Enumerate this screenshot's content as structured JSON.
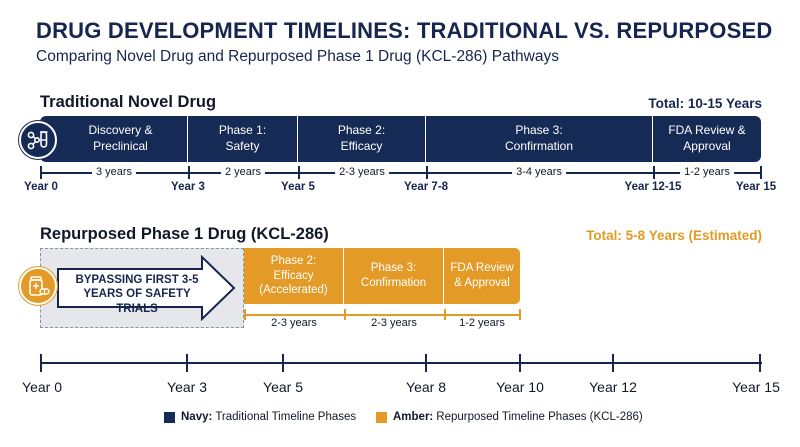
{
  "header": {
    "title": "DRUG DEVELOPMENT TIMELINES: TRADITIONAL VS. REPURPOSED",
    "subtitle": "Comparing Novel Drug and Repurposed Phase 1 Drug (KCL-286) Pathways"
  },
  "colors": {
    "navy": "#162a56",
    "amber": "#e39a26",
    "gray": "#e6e7ea"
  },
  "traditional": {
    "title": "Traditional Novel Drug",
    "total": "Total: 10-15 Years",
    "icon": "molecule-vial-icon",
    "phases": [
      {
        "label": "Discovery &\nPreclinical",
        "duration": "3 years"
      },
      {
        "label": "Phase 1:\nSafety",
        "duration": "2 years"
      },
      {
        "label": "Phase 2:\nEfficacy",
        "duration": "2-3 years"
      },
      {
        "label": "Phase 3:\nConfirmation",
        "duration": "3-4 years"
      },
      {
        "label": "FDA Review &\nApproval",
        "duration": "1-2 years"
      }
    ],
    "year_marks": [
      "Year 0",
      "Year 3",
      "Year 5",
      "Year 7-8",
      "Year 12-15",
      "Year 15"
    ]
  },
  "repurposed": {
    "title": "Repurposed Phase 1 Drug (KCL-286)",
    "total": "Total: 5-8 Years (Estimated)",
    "icon": "pill-bottle-icon",
    "bypass_text": "BYPASSING FIRST 3-5\nYEARS OF SAFETY TRIALS",
    "phases": [
      {
        "label": "Phase 2:\nEfficacy\n(Accelerated)",
        "duration": "2-3 years"
      },
      {
        "label": "Phase 3:\nConfirmation",
        "duration": "2-3 years"
      },
      {
        "label": "FDA Review\n& Approval",
        "duration": "1-2 years"
      }
    ]
  },
  "axis": {
    "labels": [
      "Year 0",
      "Year 3",
      "Year 5",
      "Year 8",
      "Year 10",
      "Year 12",
      "Year 15"
    ]
  },
  "legend": {
    "navy_bold": "Navy:",
    "navy_text": "Traditional Timeline Phases",
    "amber_bold": "Amber:",
    "amber_text": "Repurposed Timeline Phases (KCL-286)"
  }
}
